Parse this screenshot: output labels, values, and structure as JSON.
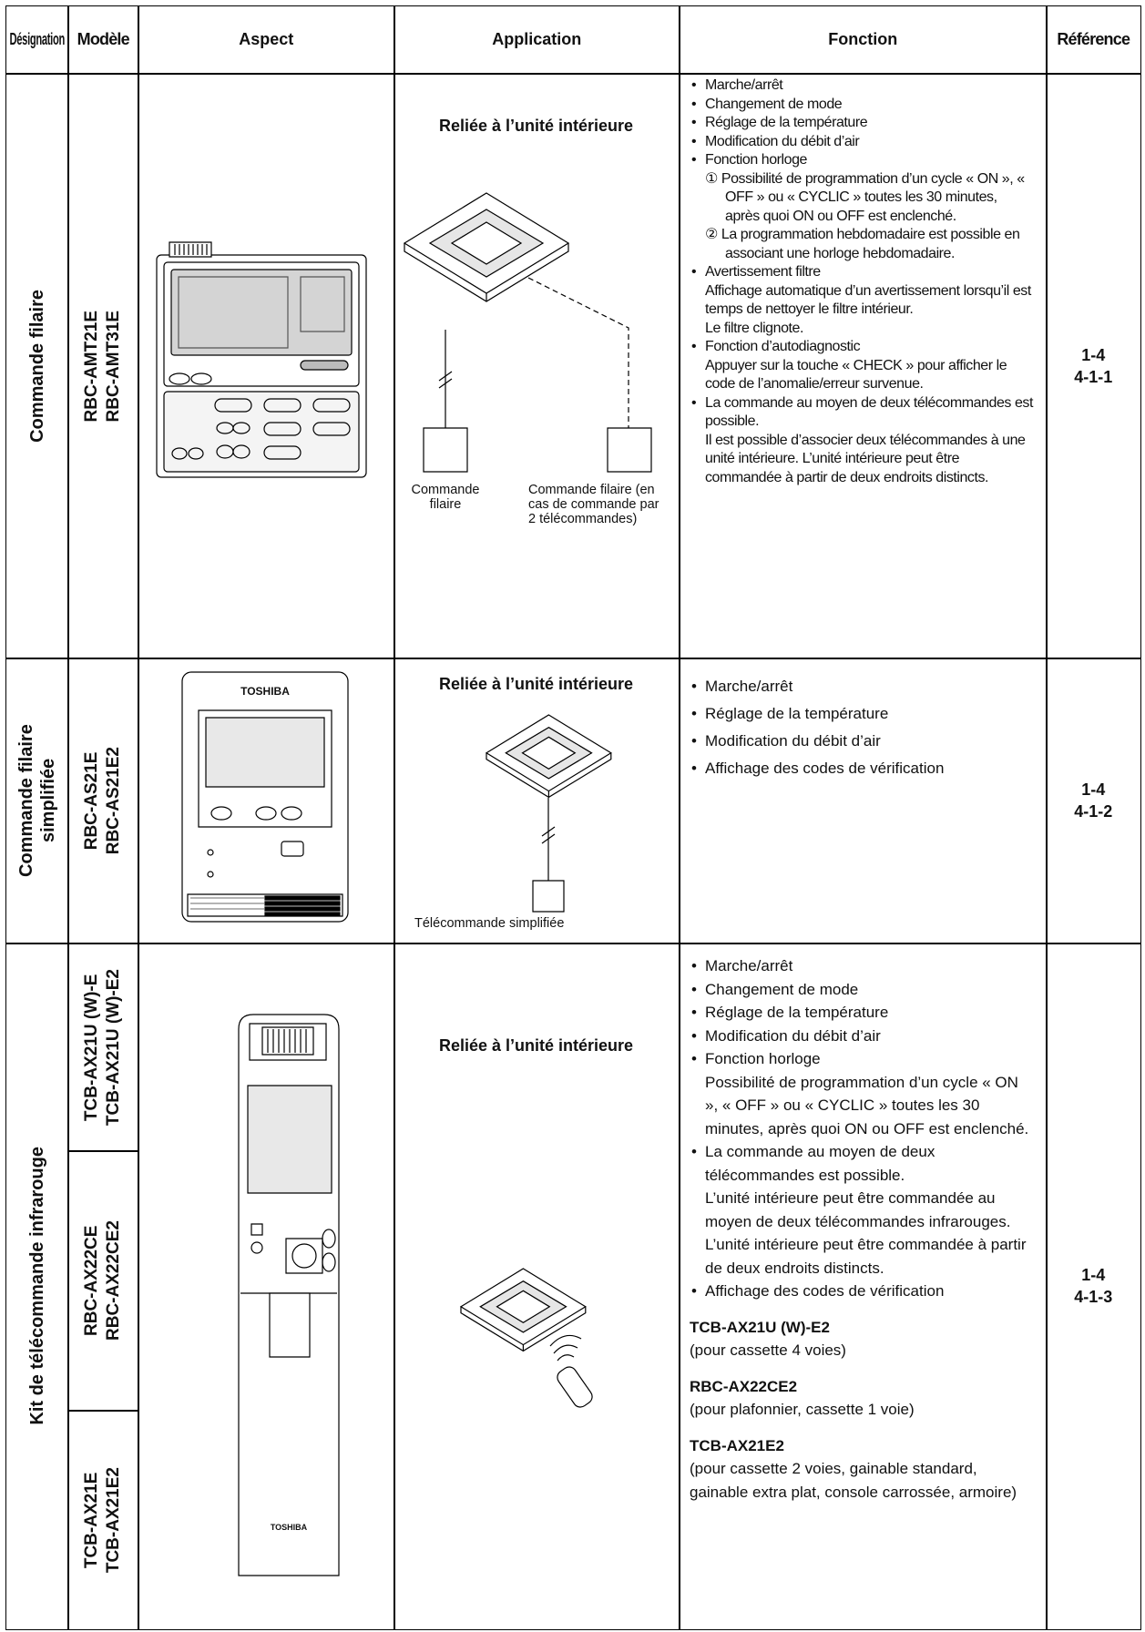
{
  "header": {
    "columns": [
      "Désignation",
      "Modèle",
      "Aspect",
      "Application",
      "Fonction",
      "Référence"
    ]
  },
  "rows": [
    {
      "designation": "Commande filaire",
      "model_groups": [
        [
          "RBC-AMT21E",
          "RBC-AMT31E"
        ]
      ],
      "application": {
        "title": "Reliée à l’unité intérieure",
        "labels": [
          "Commande filaire",
          "Commande filaire (en cas de commande par 2 télécommandes)"
        ]
      },
      "functions": [
        {
          "text": "Marche/arrêt"
        },
        {
          "text": "Changement de mode"
        },
        {
          "text": "Réglage de la température"
        },
        {
          "text": "Modification du débit d’air"
        },
        {
          "text": "Fonction horloge",
          "sub": [
            "① Possibilité de programmation d’un cycle « ON », « OFF » ou « CYCLIC » toutes les 30 minutes, après quoi ON ou OFF est enclenché.",
            "② La programmation hebdomadaire est possible en associant une horloge hebdomadaire."
          ]
        },
        {
          "text": "Avertissement filtre",
          "details": [
            "Affichage automatique d’un avertissement lorsqu’il est temps de nettoyer le filtre intérieur.",
            "Le filtre clignote."
          ]
        },
        {
          "text": "Fonction d’autodiagnostic",
          "details": [
            "Appuyer sur la touche « CHECK » pour afficher le code de l’anomalie/erreur survenue."
          ]
        },
        {
          "text": "La commande au moyen de deux télécommandes est possible.",
          "details": [
            "Il est possible d’associer deux télécommandes à une unité intérieure. L’unité intérieure peut être commandée à partir de deux endroits distincts."
          ]
        }
      ],
      "reference": [
        "1-4",
        "4-1-1"
      ]
    },
    {
      "designation": "Commande filaire simplifiée",
      "model_groups": [
        [
          "RBC-AS21E",
          "RBC-AS21E2"
        ]
      ],
      "aspect_brand": "TOSHIBA",
      "application": {
        "title": "Reliée à l’unité intérieure",
        "labels": [
          "Télécommande simplifiée"
        ]
      },
      "functions": [
        {
          "text": "Marche/arrêt"
        },
        {
          "text": "Réglage de la température"
        },
        {
          "text": "Modification du débit d’air"
        },
        {
          "text": "Affichage des codes de vérification"
        }
      ],
      "reference": [
        "1-4",
        "4-1-2"
      ]
    },
    {
      "designation": "Kit de télécommande infrarouge",
      "model_groups": [
        [
          "TCB-AX21U (W)-E",
          "TCB-AX21U (W)-E2"
        ],
        [
          "RBC-AX22CE",
          "RBC-AX22CE2"
        ],
        [
          "TCB-AX21E",
          "TCB-AX21E2"
        ]
      ],
      "aspect_brand": "TOSHIBA",
      "application": {
        "title": "Reliée à l’unité intérieure"
      },
      "functions": [
        {
          "text": "Marche/arrêt"
        },
        {
          "text": "Changement de mode"
        },
        {
          "text": "Réglage de la température"
        },
        {
          "text": "Modification du débit d’air"
        },
        {
          "text": "Fonction horloge",
          "details": [
            "Possibilité de programmation d’un cycle « ON », « OFF » ou « CYCLIC » toutes les 30 minutes, après quoi ON ou OFF est enclenché."
          ]
        },
        {
          "text": "La commande au moyen de deux télécommandes est possible.",
          "details": [
            "L’unité intérieure peut être commandée au moyen de deux télécommandes infrarouges. L’unité intérieure peut être commandée à partir de deux endroits distincts."
          ]
        },
        {
          "text": "Affichage des codes de vérification"
        }
      ],
      "variants": [
        {
          "model": "TCB-AX21U (W)-E2",
          "note": "(pour cassette 4 voies)"
        },
        {
          "model": "RBC-AX22CE2",
          "note": "(pour plafonnier, cassette 1 voie)"
        },
        {
          "model": "TCB-AX21E2",
          "note": "(pour cassette 2 voies, gainable standard, gainable extra plat, console carrossée, armoire)"
        }
      ],
      "reference": [
        "1-4",
        "4-1-3"
      ]
    }
  ]
}
